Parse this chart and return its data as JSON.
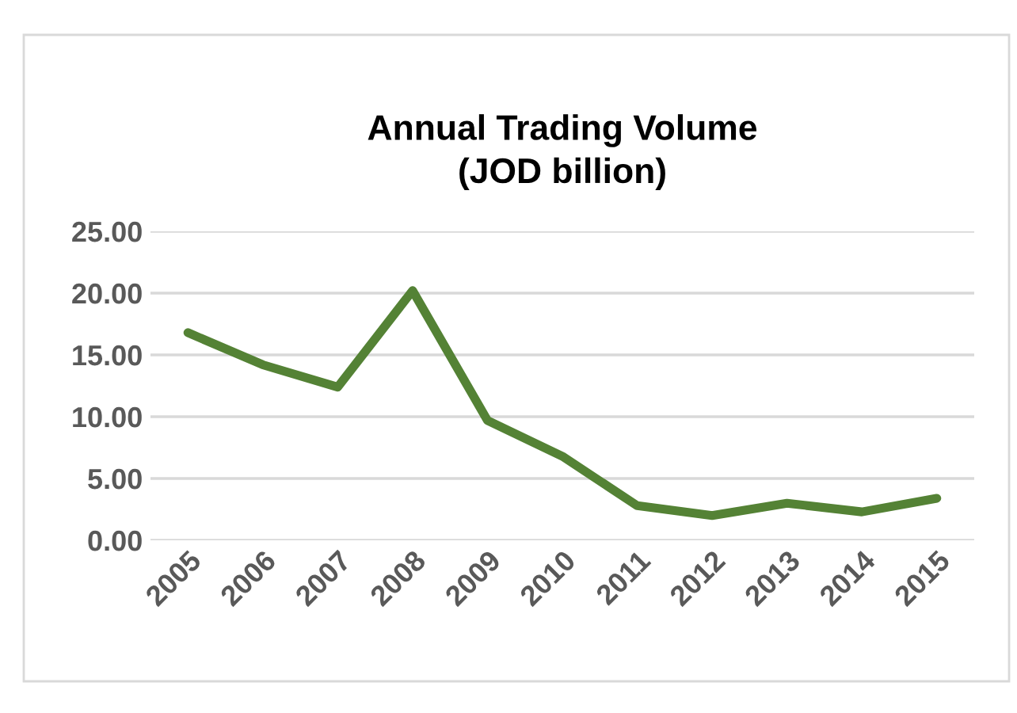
{
  "chart_data": {
    "type": "line",
    "title": "Annual Trading Volume\n(JOD billion)",
    "categories": [
      "2005",
      "2006",
      "2007",
      "2008",
      "2009",
      "2010",
      "2011",
      "2012",
      "2013",
      "2014",
      "2015"
    ],
    "series": [
      {
        "color": "#548235",
        "values": [
          16.8,
          14.2,
          12.4,
          20.2,
          9.7,
          6.8,
          2.8,
          2.0,
          3.0,
          2.3,
          3.4
        ]
      }
    ],
    "ylim": [
      0,
      25
    ],
    "yticks": [
      {
        "value": 0,
        "label": "0.00"
      },
      {
        "value": 5,
        "label": "5.00"
      },
      {
        "value": 10,
        "label": "10.00"
      },
      {
        "value": 15,
        "label": "15.00"
      },
      {
        "value": 20,
        "label": "20.00"
      },
      {
        "value": 25,
        "label": "25.00"
      }
    ],
    "grid": "y",
    "legend": false
  }
}
